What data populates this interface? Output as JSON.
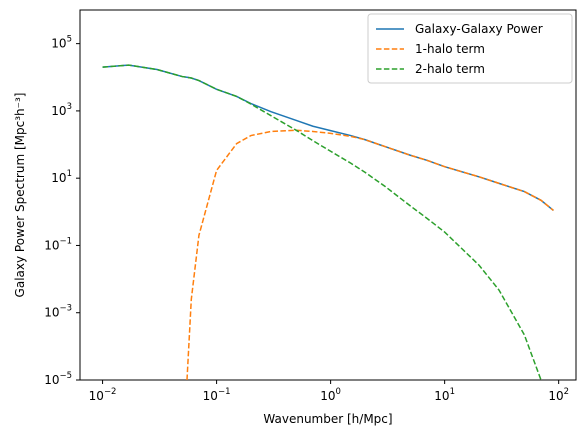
{
  "chart_data": {
    "type": "line",
    "xlabel": "Wavenumber [h/Mpc]",
    "ylabel": "Galaxy Power Spectrum [Mpc³h⁻³]",
    "xscale": "log",
    "yscale": "log",
    "xlim": [
      0.00634,
      141.9
    ],
    "ylim": [
      1e-05,
      1000000
    ],
    "xticks": [
      {
        "value": 0.01,
        "label": "10",
        "exponent": "−2"
      },
      {
        "value": 0.1,
        "label": "10",
        "exponent": "−1"
      },
      {
        "value": 1,
        "label": "10",
        "exponent": "0"
      },
      {
        "value": 10,
        "label": "10",
        "exponent": "1"
      },
      {
        "value": 100,
        "label": "10",
        "exponent": "2"
      }
    ],
    "yticks": [
      {
        "value": 1e-05,
        "label": "10",
        "exponent": "−5"
      },
      {
        "value": 0.001,
        "label": "10",
        "exponent": "−3"
      },
      {
        "value": 0.1,
        "label": "10",
        "exponent": "−1"
      },
      {
        "value": 10,
        "label": "10",
        "exponent": "1"
      },
      {
        "value": 1000,
        "label": "10",
        "exponent": "3"
      },
      {
        "value": 100000,
        "label": "10",
        "exponent": "5"
      }
    ],
    "legend": "upper right",
    "x": [
      0.01,
      0.017,
      0.03,
      0.05,
      0.055,
      0.06,
      0.07,
      0.1,
      0.15,
      0.2,
      0.3,
      0.5,
      0.7,
      1,
      1.5,
      2,
      3,
      5,
      7,
      10,
      20,
      30,
      50,
      70,
      90
    ],
    "series": [
      {
        "name": "Galaxy-Galaxy Power",
        "color": "#1f77b4",
        "dash": "solid",
        "values": [
          20000,
          23000,
          17000,
          10500,
          10000,
          9500,
          8000,
          4400,
          2700,
          1650,
          950,
          520,
          350,
          260,
          185,
          140,
          87,
          48,
          34,
          22,
          11,
          7,
          4,
          2.2,
          1.1
        ]
      },
      {
        "name": "1-halo term",
        "color": "#ff7f0e",
        "dash": "dashed",
        "values": [
          null,
          null,
          null,
          null,
          1e-05,
          0.0025,
          0.2,
          17,
          107,
          185,
          245,
          265,
          245,
          215,
          175,
          140,
          87,
          48,
          34,
          22,
          11,
          7,
          4,
          2.2,
          1.1
        ]
      },
      {
        "name": "2-halo term",
        "color": "#2ca02c",
        "dash": "dashed",
        "values": [
          20000,
          23000,
          17000,
          10500,
          10000,
          9500,
          8000,
          4400,
          2700,
          1600,
          720,
          265,
          130,
          63,
          28,
          15,
          5.7,
          1.5,
          0.64,
          0.25,
          0.026,
          0.0047,
          0.00022,
          1e-05,
          null
        ]
      }
    ]
  }
}
